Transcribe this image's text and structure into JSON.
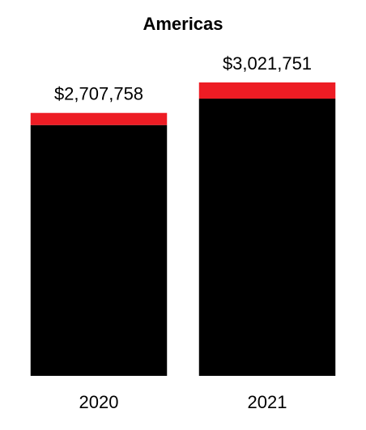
{
  "chart_data": {
    "type": "stacked-bar",
    "title": "Americas",
    "categories": [
      "2020",
      "2021"
    ],
    "series": [
      {
        "color": "#000000",
        "values": [
          2582758,
          2855000
        ]
      },
      {
        "color": "#ed1c24",
        "values": [
          125000,
          166751
        ]
      }
    ],
    "totals": {
      "values": [
        2707758,
        3021751
      ],
      "value_labels": [
        "$2,707,758",
        "$3,021,751"
      ]
    }
  }
}
